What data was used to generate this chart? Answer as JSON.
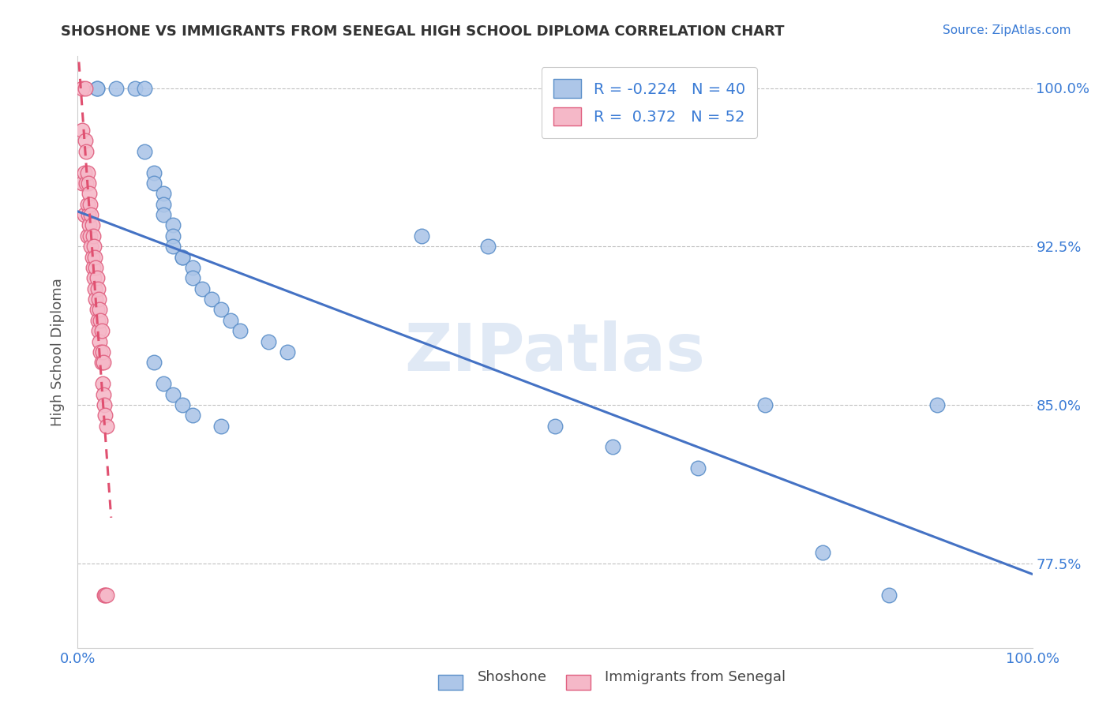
{
  "title": "SHOSHONE VS IMMIGRANTS FROM SENEGAL HIGH SCHOOL DIPLOMA CORRELATION CHART",
  "source": "Source: ZipAtlas.com",
  "ylabel": "High School Diploma",
  "xlim": [
    0.0,
    1.0
  ],
  "ylim": [
    0.735,
    1.015
  ],
  "x_tick_values": [
    0.0,
    0.25,
    0.5,
    0.75,
    1.0
  ],
  "x_tick_labels_show": [
    "0.0%",
    "",
    "",
    "",
    "100.0%"
  ],
  "y_tick_labels": [
    "77.5%",
    "85.0%",
    "92.5%",
    "100.0%"
  ],
  "y_tick_values": [
    0.775,
    0.85,
    0.925,
    1.0
  ],
  "shoshone_fill": "#adc6e8",
  "shoshone_edge": "#5b8fc9",
  "senegal_fill": "#f5b8c8",
  "senegal_edge": "#e06080",
  "trend_blue": "#4472c4",
  "trend_pink": "#e05070",
  "r_shoshone": -0.224,
  "n_shoshone": 40,
  "r_senegal": 0.372,
  "n_senegal": 52,
  "watermark_text": "ZIPatlas",
  "shoshone_x": [
    0.02,
    0.02,
    0.04,
    0.06,
    0.07,
    0.07,
    0.08,
    0.08,
    0.09,
    0.09,
    0.09,
    0.1,
    0.1,
    0.1,
    0.11,
    0.11,
    0.12,
    0.12,
    0.13,
    0.14,
    0.15,
    0.16,
    0.17,
    0.2,
    0.22,
    0.08,
    0.09,
    0.1,
    0.11,
    0.12,
    0.36,
    0.43,
    0.5,
    0.56,
    0.65,
    0.72,
    0.78,
    0.85,
    0.9,
    0.15
  ],
  "shoshone_y": [
    1.0,
    1.0,
    1.0,
    1.0,
    1.0,
    0.97,
    0.96,
    0.955,
    0.95,
    0.945,
    0.94,
    0.935,
    0.93,
    0.925,
    0.92,
    0.92,
    0.915,
    0.91,
    0.905,
    0.9,
    0.895,
    0.89,
    0.885,
    0.88,
    0.875,
    0.87,
    0.86,
    0.855,
    0.85,
    0.845,
    0.93,
    0.925,
    0.84,
    0.83,
    0.82,
    0.85,
    0.78,
    0.76,
    0.85,
    0.84
  ],
  "senegal_x": [
    0.005,
    0.005,
    0.005,
    0.007,
    0.007,
    0.008,
    0.008,
    0.009,
    0.009,
    0.01,
    0.01,
    0.01,
    0.011,
    0.011,
    0.012,
    0.012,
    0.013,
    0.013,
    0.014,
    0.014,
    0.015,
    0.015,
    0.016,
    0.016,
    0.017,
    0.017,
    0.018,
    0.018,
    0.019,
    0.019,
    0.02,
    0.02,
    0.021,
    0.021,
    0.022,
    0.022,
    0.023,
    0.023,
    0.024,
    0.024,
    0.025,
    0.025,
    0.026,
    0.026,
    0.027,
    0.027,
    0.028,
    0.028,
    0.029,
    0.029,
    0.03,
    0.03
  ],
  "senegal_y": [
    1.0,
    0.98,
    0.955,
    0.96,
    0.94,
    1.0,
    0.975,
    0.97,
    0.955,
    0.96,
    0.945,
    0.93,
    0.955,
    0.94,
    0.95,
    0.935,
    0.945,
    0.93,
    0.94,
    0.925,
    0.935,
    0.92,
    0.93,
    0.915,
    0.925,
    0.91,
    0.92,
    0.905,
    0.915,
    0.9,
    0.91,
    0.895,
    0.905,
    0.89,
    0.9,
    0.885,
    0.895,
    0.88,
    0.89,
    0.875,
    0.885,
    0.87,
    0.875,
    0.86,
    0.87,
    0.855,
    0.76,
    0.85,
    0.76,
    0.845,
    0.76,
    0.84
  ]
}
